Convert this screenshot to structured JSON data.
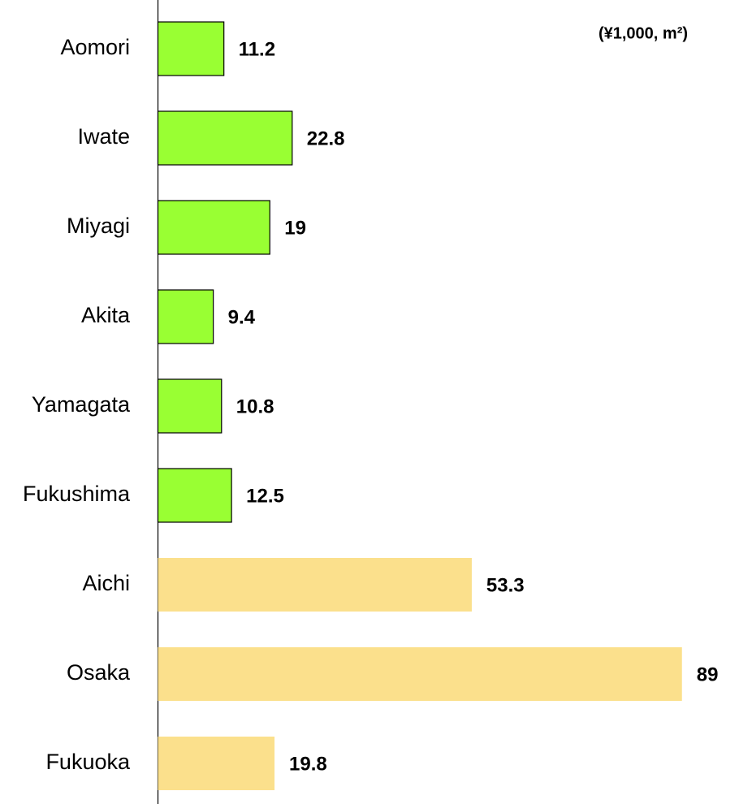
{
  "chart_data": {
    "type": "barh",
    "annotation": "(¥1,000, m²)",
    "categories": [
      "Aomori",
      "Iwate",
      "Miyagi",
      "Akita",
      "Yamagata",
      "Fukushima",
      "Aichi",
      "Osaka",
      "Fukuoka"
    ],
    "values": [
      11.2,
      22.8,
      19,
      9.4,
      10.8,
      12.5,
      53.3,
      89,
      19.8
    ],
    "colors": [
      "#99ff33",
      "#99ff33",
      "#99ff33",
      "#99ff33",
      "#99ff33",
      "#99ff33",
      "#fbe08c",
      "#fbe08c",
      "#fbe08c"
    ],
    "edgecolors": [
      "#000000",
      "#000000",
      "#000000",
      "#000000",
      "#000000",
      "#000000",
      "none",
      "none",
      "none"
    ]
  }
}
